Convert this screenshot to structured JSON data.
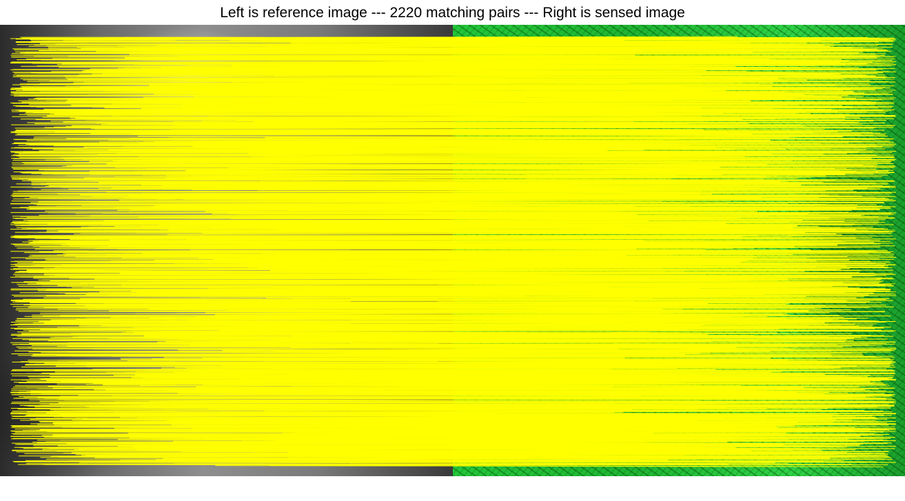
{
  "figure": {
    "title": "Left is reference image --- 2220 matching pairs --- Right is sensed image"
  },
  "panels": {
    "reference": {
      "tone": "grayscale"
    },
    "sensed": {
      "tone": "green"
    }
  },
  "matches": {
    "count": 2220,
    "line_color": "#ffff00"
  },
  "colors": {
    "match_line": "#ffff00",
    "sensed_tint": "#22c23a",
    "reference_tint": "#7a7a7a"
  }
}
